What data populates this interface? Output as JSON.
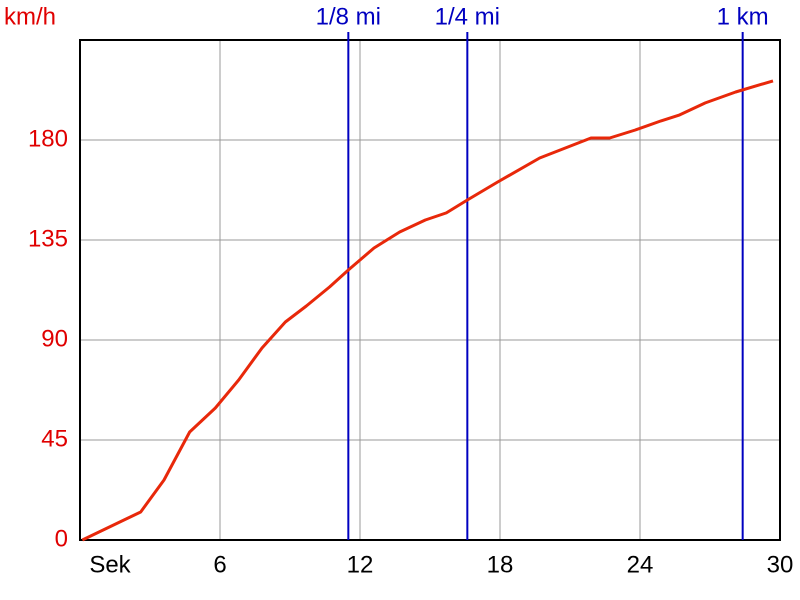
{
  "chart_data": {
    "type": "line",
    "y_label": "km/h",
    "x": [
      0.1,
      2.6,
      3.6,
      4.7,
      5.8,
      6.8,
      7.8,
      8.8,
      9.7,
      10.7,
      11.5,
      12.6,
      13.7,
      14.8,
      15.7,
      16.6,
      17.9,
      19.7,
      21.9,
      22.7,
      23.8,
      24.9,
      25.7,
      26.8,
      28.1,
      29.7
    ],
    "series": [
      {
        "color": "#e8280a",
        "values": [
          0,
          12.6,
          27,
          48.6,
          59.4,
          72,
          86.4,
          98.1,
          105.3,
          113.9,
          121.5,
          131.4,
          138.6,
          144,
          147.2,
          153,
          161.1,
          171.9,
          180.9,
          180.9,
          184.5,
          188.6,
          191.3,
          196.7,
          201.6,
          206.6
        ]
      }
    ],
    "xlim": [
      0,
      30
    ],
    "xticks": [
      {
        "value": 0,
        "label": "Sek"
      },
      6,
      12,
      18,
      24,
      30
    ],
    "ylim": [
      0,
      225
    ],
    "yticks": [
      0,
      45,
      90,
      135,
      180
    ],
    "grid": true,
    "markers": [
      {
        "label": "1/8 mi",
        "x": 11.5
      },
      {
        "label": "1/4 mi",
        "x": 16.6
      },
      {
        "label": "1 km",
        "x": 28.4
      }
    ],
    "marker_color": "#0000c0"
  }
}
